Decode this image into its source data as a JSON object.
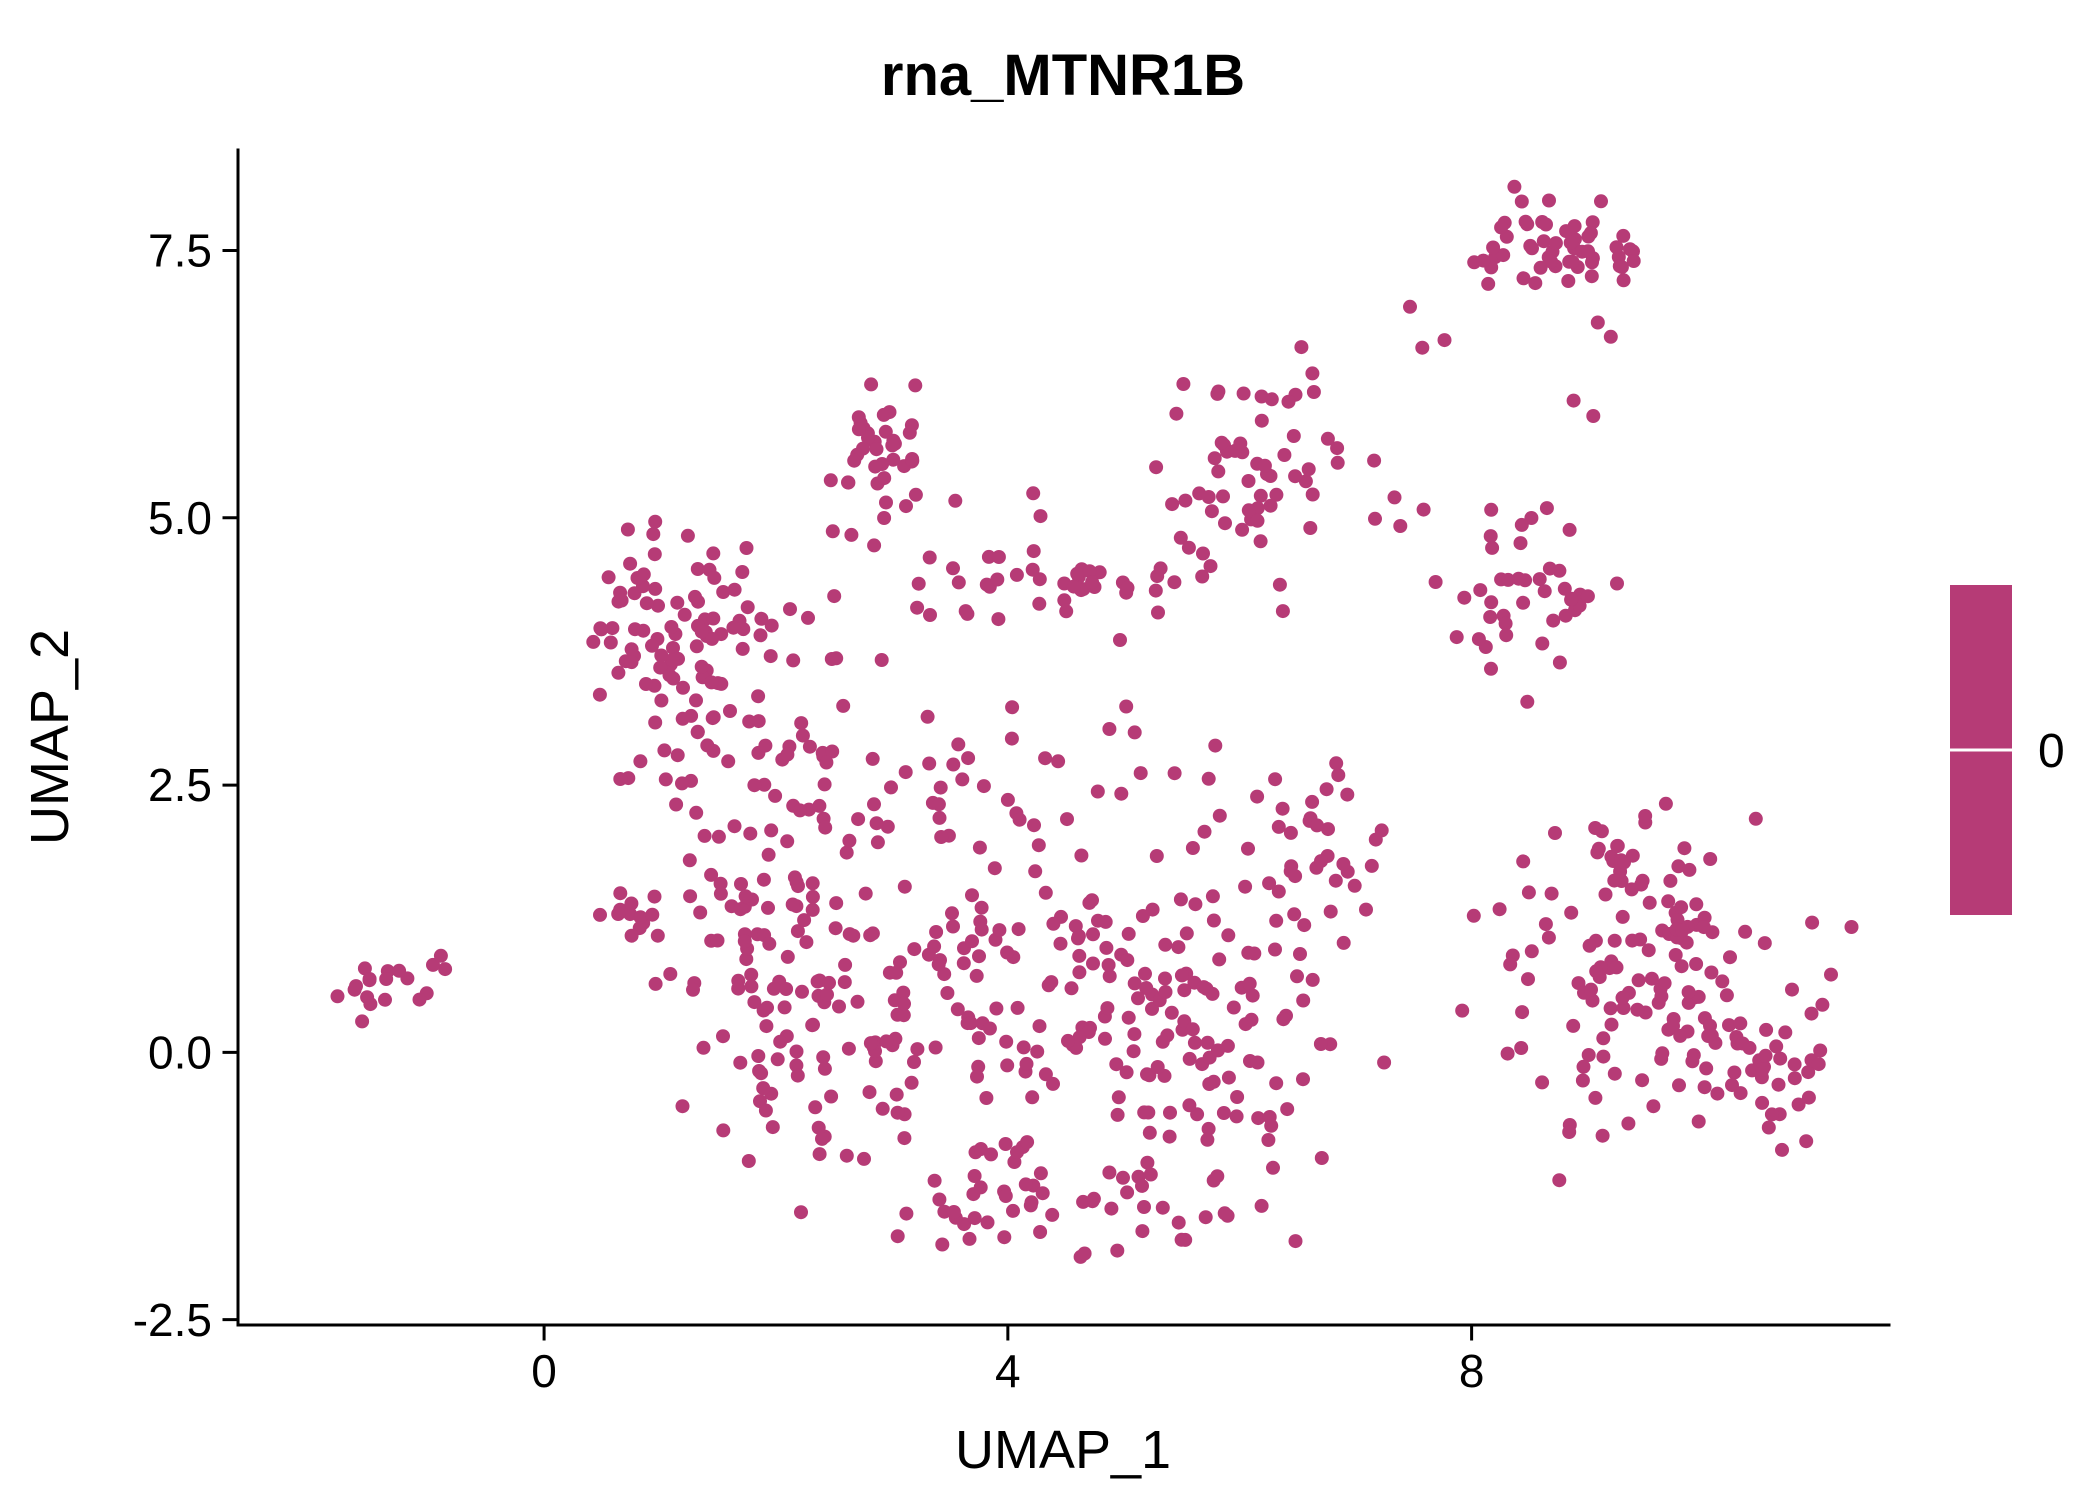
{
  "chart_data": {
    "type": "scatter",
    "title": "rna_MTNR1B",
    "xlabel": "UMAP_1",
    "ylabel": "UMAP_2",
    "legend_label": "0",
    "point_color": "#B63B76",
    "axis_color": "#000000",
    "point_radius": 7,
    "xlim": [
      -2.64,
      11.6
    ],
    "ylim": [
      -2.55,
      8.44
    ],
    "x_ticks": {
      "values": [
        0,
        4,
        8
      ],
      "labels": [
        "0",
        "4",
        "8"
      ]
    },
    "y_ticks": {
      "values": [
        -2.5,
        0,
        2.5,
        5,
        7.5
      ],
      "labels": [
        "-2.5",
        "0.0",
        "2.5",
        "5.0",
        "7.5"
      ]
    },
    "legend": {
      "position": "right",
      "tick_value": "0"
    },
    "grid": false,
    "seed": 42,
    "clusters": [
      {
        "cx": -1.45,
        "cy": 0.65,
        "sx": 0.18,
        "sy": 0.11,
        "n": 16
      },
      {
        "cx": -0.95,
        "cy": 0.8,
        "sx": 0.12,
        "sy": 0.05,
        "n": 3
      },
      {
        "cx": 1.05,
        "cy": 4.05,
        "sx": 0.38,
        "sy": 0.42,
        "n": 75
      },
      {
        "cx": 1.45,
        "cy": 3.0,
        "sx": 0.35,
        "sy": 0.4,
        "n": 30
      },
      {
        "cx": 2.1,
        "cy": 3.6,
        "sx": 0.5,
        "sy": 0.6,
        "n": 18
      },
      {
        "cx": 3.0,
        "cy": 5.75,
        "sx": 0.28,
        "sy": 0.25,
        "n": 32
      },
      {
        "cx": 2.75,
        "cy": 5.1,
        "sx": 0.25,
        "sy": 0.25,
        "n": 8
      },
      {
        "cx": 6.1,
        "cy": 5.5,
        "sx": 0.38,
        "sy": 0.38,
        "n": 55
      },
      {
        "cx": 3.9,
        "cy": 4.35,
        "sx": 0.55,
        "sy": 0.18,
        "n": 22
      },
      {
        "cx": 4.6,
        "cy": 4.4,
        "sx": 0.25,
        "sy": 0.12,
        "n": 12
      },
      {
        "cx": 5.35,
        "cy": 4.35,
        "sx": 0.45,
        "sy": 0.3,
        "n": 14
      },
      {
        "cx": 8.5,
        "cy": 4.3,
        "sx": 0.38,
        "sy": 0.35,
        "n": 42
      },
      {
        "cx": 8.6,
        "cy": 7.5,
        "sx": 0.42,
        "sy": 0.22,
        "n": 55
      },
      {
        "cx": 7.7,
        "cy": 6.75,
        "sx": 0.25,
        "sy": 0.15,
        "n": 3
      },
      {
        "cx": 9.05,
        "cy": 6.5,
        "sx": 0.08,
        "sy": 0.35,
        "n": 4
      },
      {
        "cx": 3.9,
        "cy": 5.05,
        "sx": 0.35,
        "sy": 0.1,
        "n": 3
      },
      {
        "cx": 7.3,
        "cy": 4.95,
        "sx": 0.25,
        "sy": 0.15,
        "n": 4
      },
      {
        "cx": 0.65,
        "cy": 1.35,
        "sx": 0.2,
        "sy": 0.12,
        "n": 12
      },
      {
        "cx": 1.9,
        "cy": 1.4,
        "sx": 0.45,
        "sy": 0.45,
        "n": 55
      },
      {
        "cx": 2.1,
        "cy": 0.0,
        "sx": 0.45,
        "sy": 0.55,
        "n": 55
      },
      {
        "cx": 3.3,
        "cy": 0.4,
        "sx": 0.6,
        "sy": 0.75,
        "n": 65
      },
      {
        "cx": 4.7,
        "cy": 0.6,
        "sx": 0.75,
        "sy": 0.8,
        "n": 90
      },
      {
        "cx": 5.8,
        "cy": 0.1,
        "sx": 0.55,
        "sy": 0.75,
        "n": 65
      },
      {
        "cx": 4.6,
        "cy": -1.45,
        "sx": 0.8,
        "sy": 0.3,
        "n": 55
      },
      {
        "cx": 6.6,
        "cy": 1.9,
        "sx": 0.35,
        "sy": 0.5,
        "n": 38
      },
      {
        "cx": 4.3,
        "cy": 2.6,
        "sx": 1.0,
        "sy": 0.35,
        "n": 35
      },
      {
        "cx": 2.6,
        "cy": 2.2,
        "sx": 0.4,
        "sy": 0.4,
        "n": 20
      },
      {
        "cx": 9.7,
        "cy": 0.6,
        "sx": 0.6,
        "sy": 0.75,
        "n": 140
      },
      {
        "cx": 9.3,
        "cy": 1.9,
        "sx": 0.35,
        "sy": 0.2,
        "n": 12
      },
      {
        "cx": 8.4,
        "cy": 1.0,
        "sx": 0.2,
        "sy": 0.35,
        "n": 8
      },
      {
        "cx": 10.6,
        "cy": -0.1,
        "sx": 0.35,
        "sy": 0.3,
        "n": 20
      }
    ]
  }
}
